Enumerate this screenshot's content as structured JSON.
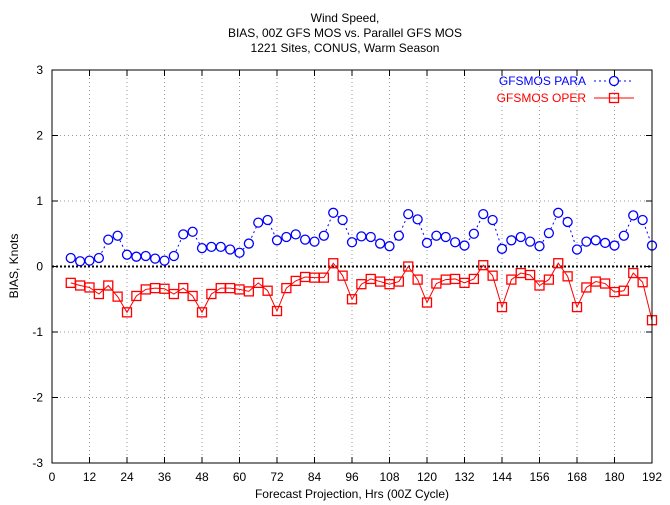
{
  "chart_data": {
    "type": "line",
    "title_lines": [
      "Wind Speed,",
      "BIAS, 00Z GFS MOS vs. Parallel GFS MOS",
      "1221 Sites, CONUS, Warm Season"
    ],
    "xlabel": "Forecast Projection, Hrs (00Z Cycle)",
    "ylabel": "BIAS, Knots",
    "xlim": [
      0,
      192
    ],
    "ylim": [
      -3,
      3
    ],
    "xticks": [
      0,
      12,
      24,
      36,
      48,
      60,
      72,
      84,
      96,
      108,
      120,
      132,
      144,
      156,
      168,
      180,
      192
    ],
    "yticks": [
      -3,
      -2,
      -1,
      0,
      1,
      2,
      3
    ],
    "grid": true,
    "zero_line": true,
    "legend_position": "top-right",
    "x": [
      6,
      9,
      12,
      15,
      18,
      21,
      24,
      27,
      30,
      33,
      36,
      39,
      42,
      45,
      48,
      51,
      54,
      57,
      60,
      63,
      66,
      69,
      72,
      75,
      78,
      81,
      84,
      87,
      90,
      93,
      96,
      99,
      102,
      105,
      108,
      111,
      114,
      117,
      120,
      123,
      126,
      129,
      132,
      135,
      138,
      141,
      144,
      147,
      150,
      153,
      156,
      159,
      162,
      165,
      168,
      171,
      174,
      177,
      180,
      183,
      186,
      189,
      192
    ],
    "series": [
      {
        "name": "GFSMOS PARA",
        "color": "#0000ff",
        "line_style": "dotted",
        "marker": "circle",
        "values": [
          0.13,
          0.08,
          0.09,
          0.13,
          0.41,
          0.47,
          0.18,
          0.15,
          0.16,
          0.12,
          0.09,
          0.16,
          0.49,
          0.53,
          0.28,
          0.3,
          0.3,
          0.26,
          0.21,
          0.35,
          0.67,
          0.71,
          0.4,
          0.45,
          0.49,
          0.41,
          0.38,
          0.47,
          0.82,
          0.71,
          0.37,
          0.46,
          0.45,
          0.35,
          0.31,
          0.47,
          0.8,
          0.72,
          0.36,
          0.47,
          0.45,
          0.37,
          0.32,
          0.5,
          0.8,
          0.71,
          0.27,
          0.4,
          0.45,
          0.38,
          0.31,
          0.51,
          0.82,
          0.68,
          0.26,
          0.38,
          0.4,
          0.36,
          0.32,
          0.47,
          0.78,
          0.71,
          0.32
        ]
      },
      {
        "name": "GFSMOS OPER",
        "color": "#ff0000",
        "line_style": "solid",
        "marker": "square",
        "values": [
          -0.25,
          -0.29,
          -0.32,
          -0.42,
          -0.29,
          -0.46,
          -0.7,
          -0.45,
          -0.35,
          -0.33,
          -0.34,
          -0.42,
          -0.33,
          -0.45,
          -0.7,
          -0.42,
          -0.33,
          -0.33,
          -0.35,
          -0.38,
          -0.25,
          -0.37,
          -0.68,
          -0.33,
          -0.22,
          -0.16,
          -0.17,
          -0.17,
          0.05,
          -0.14,
          -0.5,
          -0.27,
          -0.19,
          -0.23,
          -0.27,
          -0.23,
          0.0,
          -0.2,
          -0.55,
          -0.26,
          -0.2,
          -0.19,
          -0.25,
          -0.19,
          0.02,
          -0.14,
          -0.62,
          -0.2,
          -0.1,
          -0.13,
          -0.29,
          -0.2,
          0.05,
          -0.15,
          -0.62,
          -0.32,
          -0.23,
          -0.26,
          -0.39,
          -0.37,
          -0.1,
          -0.24,
          -0.82
        ]
      }
    ]
  }
}
